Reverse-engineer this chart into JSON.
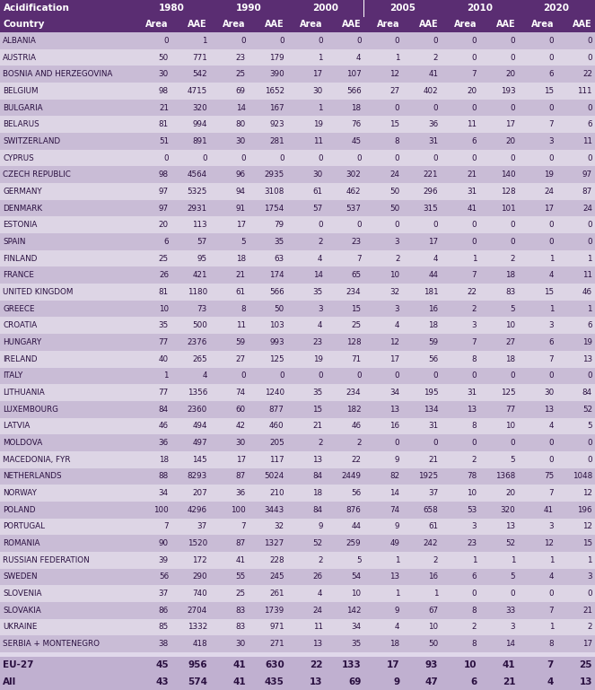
{
  "title_row1": "Acidification",
  "year_headers": [
    "1980",
    "1990",
    "2000",
    "2005",
    "2010",
    "2020"
  ],
  "col_headers": [
    "Area",
    "AAE"
  ],
  "country_col_header": "Country",
  "rows": [
    [
      "ALBANIA",
      0,
      1,
      0,
      0,
      0,
      0,
      0,
      0,
      0,
      0,
      0,
      0
    ],
    [
      "AUSTRIA",
      50,
      771,
      23,
      179,
      1,
      4,
      1,
      2,
      0,
      0,
      0,
      0
    ],
    [
      "BOSNIA AND HERZEGOVINA",
      30,
      542,
      25,
      390,
      17,
      107,
      12,
      41,
      7,
      20,
      6,
      22
    ],
    [
      "BELGIUM",
      98,
      4715,
      69,
      1652,
      30,
      566,
      27,
      402,
      20,
      193,
      15,
      111
    ],
    [
      "BULGARIA",
      21,
      320,
      14,
      167,
      1,
      18,
      0,
      0,
      0,
      0,
      0,
      0
    ],
    [
      "BELARUS",
      81,
      994,
      80,
      923,
      19,
      76,
      15,
      36,
      11,
      17,
      7,
      6
    ],
    [
      "SWITZERLAND",
      51,
      891,
      30,
      281,
      11,
      45,
      8,
      31,
      6,
      20,
      3,
      11
    ],
    [
      "CYPRUS",
      0,
      0,
      0,
      0,
      0,
      0,
      0,
      0,
      0,
      0,
      0,
      0
    ],
    [
      "CZECH REPUBLIC",
      98,
      4564,
      96,
      2935,
      30,
      302,
      24,
      221,
      21,
      140,
      19,
      97
    ],
    [
      "GERMANY",
      97,
      5325,
      94,
      3108,
      61,
      462,
      50,
      296,
      31,
      128,
      24,
      87
    ],
    [
      "DENMARK",
      97,
      2931,
      91,
      1754,
      57,
      537,
      50,
      315,
      41,
      101,
      17,
      24
    ],
    [
      "ESTONIA",
      20,
      113,
      17,
      79,
      0,
      0,
      0,
      0,
      0,
      0,
      0,
      0
    ],
    [
      "SPAIN",
      6,
      57,
      5,
      35,
      2,
      23,
      3,
      17,
      0,
      0,
      0,
      0
    ],
    [
      "FINLAND",
      25,
      95,
      18,
      63,
      4,
      7,
      2,
      4,
      1,
      2,
      1,
      1
    ],
    [
      "FRANCE",
      26,
      421,
      21,
      174,
      14,
      65,
      10,
      44,
      7,
      18,
      4,
      11
    ],
    [
      "UNITED KINGDOM",
      81,
      1180,
      61,
      566,
      35,
      234,
      32,
      181,
      22,
      83,
      15,
      46
    ],
    [
      "GREECE",
      10,
      73,
      8,
      50,
      3,
      15,
      3,
      16,
      2,
      5,
      1,
      1
    ],
    [
      "CROATIA",
      35,
      500,
      11,
      103,
      4,
      25,
      4,
      18,
      3,
      10,
      3,
      6
    ],
    [
      "HUNGARY",
      77,
      2376,
      59,
      993,
      23,
      128,
      12,
      59,
      7,
      27,
      6,
      19
    ],
    [
      "IRELAND",
      40,
      265,
      27,
      125,
      19,
      71,
      17,
      56,
      8,
      18,
      7,
      13
    ],
    [
      "ITALY",
      1,
      4,
      0,
      0,
      0,
      0,
      0,
      0,
      0,
      0,
      0,
      0
    ],
    [
      "LITHUANIA",
      77,
      1356,
      74,
      1240,
      35,
      234,
      34,
      195,
      31,
      125,
      30,
      84
    ],
    [
      "LUXEMBOURG",
      84,
      2360,
      60,
      877,
      15,
      182,
      13,
      134,
      13,
      77,
      13,
      52
    ],
    [
      "LATVIA",
      46,
      494,
      42,
      460,
      21,
      46,
      16,
      31,
      8,
      10,
      4,
      5
    ],
    [
      "MOLDOVA",
      36,
      497,
      30,
      205,
      2,
      2,
      0,
      0,
      0,
      0,
      0,
      0
    ],
    [
      "MACEDONIA, FYR",
      18,
      145,
      17,
      117,
      13,
      22,
      9,
      21,
      2,
      5,
      0,
      0
    ],
    [
      "NETHERLANDS",
      88,
      8293,
      87,
      5024,
      84,
      2449,
      82,
      1925,
      78,
      1368,
      75,
      1048
    ],
    [
      "NORWAY",
      34,
      207,
      36,
      210,
      18,
      56,
      14,
      37,
      10,
      20,
      7,
      12
    ],
    [
      "POLAND",
      100,
      4296,
      100,
      3443,
      84,
      876,
      74,
      658,
      53,
      320,
      41,
      196
    ],
    [
      "PORTUGAL",
      7,
      37,
      7,
      32,
      9,
      44,
      9,
      61,
      3,
      13,
      3,
      12
    ],
    [
      "ROMANIA",
      90,
      1520,
      87,
      1327,
      52,
      259,
      49,
      242,
      23,
      52,
      12,
      15
    ],
    [
      "RUSSIAN FEDERATION",
      39,
      172,
      41,
      228,
      2,
      5,
      1,
      2,
      1,
      1,
      1,
      1
    ],
    [
      "SWEDEN",
      56,
      290,
      55,
      245,
      26,
      54,
      13,
      16,
      6,
      5,
      4,
      3
    ],
    [
      "SLOVENIA",
      37,
      740,
      25,
      261,
      4,
      10,
      1,
      1,
      0,
      0,
      0,
      0
    ],
    [
      "SLOVAKIA",
      86,
      2704,
      83,
      1739,
      24,
      142,
      9,
      67,
      8,
      33,
      7,
      21
    ],
    [
      "UKRAINE",
      85,
      1332,
      83,
      971,
      11,
      34,
      4,
      10,
      2,
      3,
      1,
      2
    ],
    [
      "SERBIA + MONTENEGRO",
      38,
      418,
      30,
      271,
      13,
      35,
      18,
      50,
      8,
      14,
      8,
      17
    ]
  ],
  "summary_rows": [
    [
      "EU-27",
      45,
      956,
      41,
      630,
      22,
      133,
      17,
      93,
      10,
      41,
      7,
      25
    ],
    [
      "All",
      43,
      574,
      41,
      435,
      13,
      69,
      9,
      47,
      6,
      21,
      4,
      13
    ]
  ],
  "header_bg": "#5a2d72",
  "header_text": "#ffffff",
  "row_bg_odd": "#c9bcd6",
  "row_bg_even": "#ddd5e5",
  "summary_bg": "#c0b0d0",
  "separator_bg": "#e0d8ea",
  "title_bg": "#5a2d72",
  "header2_bg": "#5a2d72",
  "text_dark": "#2a1040"
}
